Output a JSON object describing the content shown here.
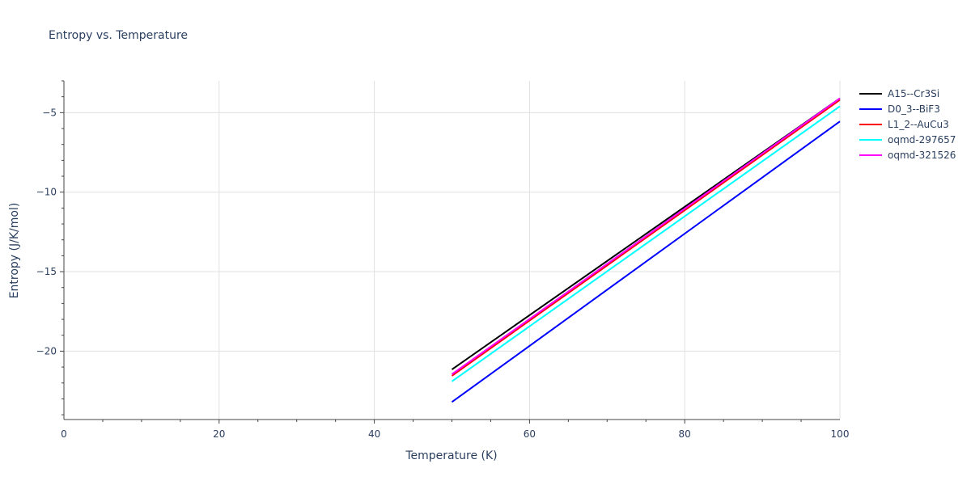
{
  "chart_data": {
    "type": "line",
    "title": "Entropy vs. Temperature",
    "xlabel": "Temperature (K)",
    "ylabel": "Entropy (J/K/mol)",
    "xlim": [
      0,
      100
    ],
    "ylim": [
      -24.3,
      -3.0
    ],
    "x_ticks": [
      "0",
      "20",
      "40",
      "60",
      "80",
      "100"
    ],
    "y_ticks": [
      "−5",
      "−10",
      "−15",
      "−20"
    ],
    "y_tick_values": [
      -5,
      -10,
      -15,
      -20
    ],
    "x_tick_values": [
      0,
      20,
      40,
      60,
      80,
      100
    ],
    "grid": true,
    "legend_position": "right",
    "series": [
      {
        "name": "A15--Cr3Si",
        "color": "#000000",
        "x": [
          50,
          100
        ],
        "values": [
          -21.15,
          -4.1
        ]
      },
      {
        "name": "D0_3--BiF3",
        "color": "#0000ff",
        "x": [
          50,
          100
        ],
        "values": [
          -23.2,
          -5.55
        ]
      },
      {
        "name": "L1_2--AuCu3",
        "color": "#ff0000",
        "x": [
          50,
          100
        ],
        "values": [
          -21.55,
          -4.2
        ]
      },
      {
        "name": "oqmd-297657",
        "color": "#00ffff",
        "x": [
          50,
          100
        ],
        "values": [
          -21.9,
          -4.6
        ]
      },
      {
        "name": "oqmd-321526",
        "color": "#ff00ff",
        "x": [
          50,
          100
        ],
        "values": [
          -21.45,
          -4.1
        ]
      }
    ]
  }
}
